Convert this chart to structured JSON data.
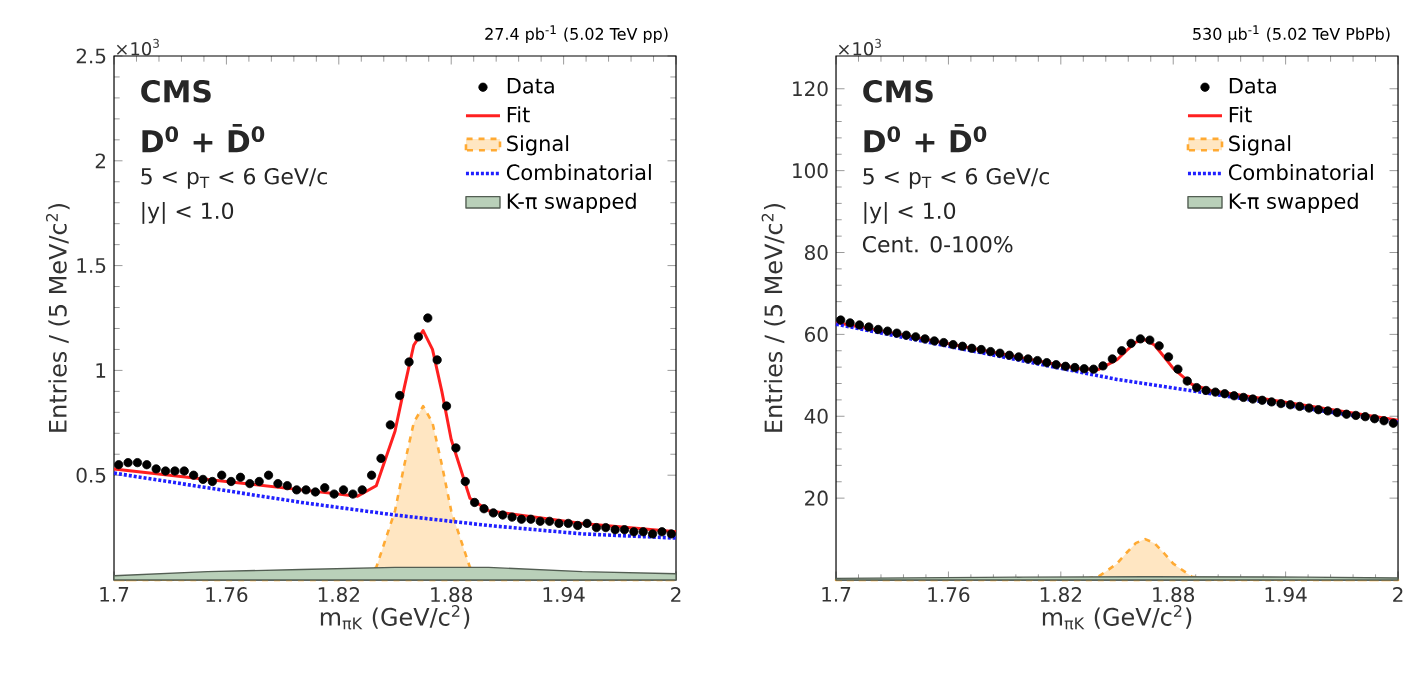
{
  "chart_data": [
    {
      "type": "scatter",
      "title": "27.4 pb$^{-1}$ (5.02 TeV pp)",
      "xlabel": "m$_{πK}$ (GeV/c$^{2}$)",
      "ylabel": "Entries / (5 MeV/c$^{2}$)",
      "xlim": [
        1.7,
        2.0
      ],
      "ylim": [
        0,
        2.5
      ],
      "xticks": [
        1.7,
        1.76,
        1.82,
        1.88,
        1.94,
        2
      ],
      "yticks": [
        0.5,
        1,
        1.5,
        2,
        2.5
      ],
      "legend": "top right",
      "annotations": [
        "×10$^{3}$",
        "CMS",
        "D$^{0}$ + D̄$^{0}$",
        "5 < p$_{T}$ < 6 GeV/c",
        "|y| < 1.0"
      ],
      "series": [
        {
          "name": "Data",
          "color": "#000000",
          "marker": "circle",
          "x": [
            1.7025,
            1.7075,
            1.7125,
            1.7175,
            1.7225,
            1.7275,
            1.7325,
            1.7375,
            1.7425,
            1.7475,
            1.7525,
            1.7575,
            1.7625,
            1.7675,
            1.7725,
            1.7775,
            1.7825,
            1.7875,
            1.7925,
            1.7975,
            1.8025,
            1.8075,
            1.8125,
            1.8175,
            1.8225,
            1.8275,
            1.8325,
            1.8375,
            1.8425,
            1.8475,
            1.8525,
            1.8575,
            1.8625,
            1.8675,
            1.8725,
            1.8775,
            1.8825,
            1.8875,
            1.8925,
            1.8975,
            1.9025,
            1.9075,
            1.9125,
            1.9175,
            1.9225,
            1.9275,
            1.9325,
            1.9375,
            1.9425,
            1.9475,
            1.9525,
            1.9575,
            1.9625,
            1.9675,
            1.9725,
            1.9775,
            1.9825,
            1.9875,
            1.9925,
            1.9975
          ],
          "values": [
            0.55,
            0.56,
            0.56,
            0.55,
            0.53,
            0.52,
            0.52,
            0.52,
            0.5,
            0.48,
            0.47,
            0.5,
            0.47,
            0.49,
            0.46,
            0.47,
            0.5,
            0.46,
            0.45,
            0.43,
            0.43,
            0.42,
            0.44,
            0.41,
            0.43,
            0.41,
            0.43,
            0.5,
            0.58,
            0.74,
            0.88,
            1.04,
            1.16,
            1.25,
            1.05,
            0.83,
            0.63,
            0.47,
            0.37,
            0.34,
            0.32,
            0.31,
            0.3,
            0.29,
            0.29,
            0.28,
            0.28,
            0.27,
            0.27,
            0.26,
            0.27,
            0.25,
            0.25,
            0.24,
            0.24,
            0.23,
            0.23,
            0.22,
            0.23,
            0.22
          ]
        },
        {
          "name": "Fit",
          "type": "line",
          "color": "#ff2020",
          "line_style": "solid",
          "x": [
            1.7,
            1.75,
            1.8,
            1.83,
            1.84,
            1.85,
            1.855,
            1.86,
            1.865,
            1.87,
            1.875,
            1.88,
            1.89,
            1.9,
            1.95,
            2.0
          ],
          "values": [
            0.53,
            0.48,
            0.43,
            0.4,
            0.45,
            0.71,
            0.92,
            1.12,
            1.19,
            1.1,
            0.9,
            0.67,
            0.39,
            0.33,
            0.27,
            0.23
          ]
        },
        {
          "name": "Signal",
          "type": "area",
          "color": "#ffaa33",
          "line_style": "dashed",
          "x": [
            1.7,
            1.83,
            1.84,
            1.85,
            1.855,
            1.86,
            1.865,
            1.87,
            1.875,
            1.88,
            1.89,
            1.9,
            2.0
          ],
          "values": [
            0,
            0.01,
            0.06,
            0.33,
            0.55,
            0.75,
            0.83,
            0.75,
            0.55,
            0.33,
            0.06,
            0.01,
            0
          ]
        },
        {
          "name": "Combinatorial",
          "type": "line",
          "color": "#2020ff",
          "line_style": "dotted",
          "x": [
            1.7,
            1.75,
            1.8,
            1.85,
            1.9,
            1.95,
            2.0
          ],
          "values": [
            0.51,
            0.44,
            0.37,
            0.31,
            0.26,
            0.22,
            0.2
          ]
        },
        {
          "name": "K-π swapped",
          "type": "area",
          "color": "#b9d0b9",
          "x": [
            1.7,
            1.75,
            1.8,
            1.85,
            1.865,
            1.9,
            1.95,
            2.0
          ],
          "values": [
            0.02,
            0.04,
            0.05,
            0.06,
            0.06,
            0.06,
            0.04,
            0.03
          ]
        }
      ]
    },
    {
      "type": "scatter",
      "title": "530 μb$^{-1}$ (5.02 TeV PbPb)",
      "xlabel": "m$_{πK}$ (GeV/c$^{2}$)",
      "ylabel": "Entries / (5 MeV/c$^{2}$)",
      "xlim": [
        1.7,
        2.0
      ],
      "ylim": [
        0,
        128
      ],
      "xticks": [
        1.7,
        1.76,
        1.82,
        1.88,
        1.94,
        2
      ],
      "yticks": [
        20,
        40,
        60,
        80,
        100,
        120
      ],
      "legend": "top right",
      "annotations": [
        "×10$^{3}$",
        "CMS",
        "D$^{0}$ + D̄$^{0}$",
        "5 < p$_{T}$ < 6 GeV/c",
        "|y| < 1.0",
        "Cent. 0-100%"
      ],
      "series": [
        {
          "name": "Data",
          "color": "#000000",
          "marker": "circle",
          "x": [
            1.7025,
            1.7075,
            1.7125,
            1.7175,
            1.7225,
            1.7275,
            1.7325,
            1.7375,
            1.7425,
            1.7475,
            1.7525,
            1.7575,
            1.7625,
            1.7675,
            1.7725,
            1.7775,
            1.7825,
            1.7875,
            1.7925,
            1.7975,
            1.8025,
            1.8075,
            1.8125,
            1.8175,
            1.8225,
            1.8275,
            1.8325,
            1.8375,
            1.8425,
            1.8475,
            1.8525,
            1.8575,
            1.8625,
            1.8675,
            1.8725,
            1.8775,
            1.8825,
            1.8875,
            1.8925,
            1.8975,
            1.9025,
            1.9075,
            1.9125,
            1.9175,
            1.9225,
            1.9275,
            1.9325,
            1.9375,
            1.9425,
            1.9475,
            1.9525,
            1.9575,
            1.9625,
            1.9675,
            1.9725,
            1.9775,
            1.9825,
            1.9875,
            1.9925,
            1.9975
          ],
          "values": [
            63.5,
            62.8,
            62.3,
            61.8,
            61.2,
            60.8,
            60.3,
            59.8,
            59.4,
            58.9,
            58.4,
            58.0,
            57.5,
            57.1,
            56.6,
            56.3,
            55.8,
            55.4,
            54.9,
            54.5,
            54.0,
            53.6,
            53.1,
            52.6,
            52.2,
            51.9,
            51.6,
            51.5,
            52.3,
            54.0,
            56.0,
            57.8,
            58.9,
            58.6,
            57.2,
            54.5,
            51.5,
            48.6,
            47.0,
            46.3,
            45.9,
            45.5,
            45.0,
            44.6,
            44.2,
            43.9,
            43.5,
            43.1,
            42.8,
            42.4,
            42.0,
            41.6,
            41.3,
            40.9,
            40.5,
            40.2,
            39.9,
            39.4,
            38.9,
            38.3
          ]
        },
        {
          "name": "Fit",
          "type": "line",
          "color": "#ff2020",
          "line_style": "solid",
          "x": [
            1.7,
            1.75,
            1.8,
            1.83,
            1.84,
            1.85,
            1.855,
            1.86,
            1.865,
            1.87,
            1.875,
            1.88,
            1.89,
            1.9,
            1.95,
            2.0
          ],
          "values": [
            62.9,
            58.6,
            54.2,
            51.6,
            51.4,
            53.8,
            56,
            58.1,
            58.7,
            57.4,
            54.6,
            51.7,
            47.8,
            46.3,
            42.7,
            39.0
          ]
        },
        {
          "name": "Signal",
          "type": "area",
          "color": "#ffaa33",
          "line_style": "dashed",
          "x": [
            1.7,
            1.83,
            1.84,
            1.85,
            1.855,
            1.86,
            1.865,
            1.87,
            1.875,
            1.88,
            1.89,
            1.9,
            2.0
          ],
          "values": [
            0,
            0.1,
            0.8,
            4,
            6.6,
            9,
            10,
            9,
            6.6,
            4,
            0.8,
            0.1,
            0
          ]
        },
        {
          "name": "Combinatorial",
          "type": "line",
          "color": "#2020ff",
          "line_style": "dotted",
          "x": [
            1.7,
            1.75,
            1.8,
            1.85,
            1.9,
            1.95,
            2.0
          ],
          "values": [
            62.5,
            58,
            53.5,
            49,
            45.5,
            42,
            38.5
          ]
        },
        {
          "name": "K-π swapped",
          "type": "area",
          "color": "#b9d0b9",
          "x": [
            1.7,
            1.8,
            1.865,
            1.95,
            2.0
          ],
          "values": [
            0.4,
            0.7,
            0.8,
            0.7,
            0.5
          ]
        }
      ]
    }
  ]
}
